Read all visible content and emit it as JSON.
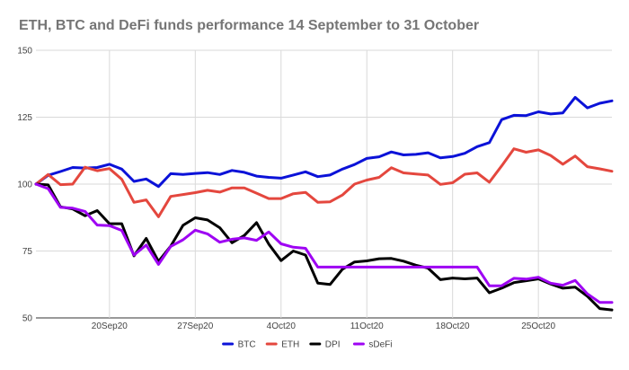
{
  "chart_data": {
    "type": "line",
    "title": "ETH, BTC and DeFi funds performance 14 September to 31 October",
    "xlabel": "",
    "ylabel": "",
    "ylim": [
      50,
      150
    ],
    "yticks": [
      50,
      75,
      100,
      125,
      150
    ],
    "xticks": [
      {
        "day": 6,
        "label": "20Sep20"
      },
      {
        "day": 13,
        "label": "27Sep20"
      },
      {
        "day": 20,
        "label": "4Oct20"
      },
      {
        "day": 27,
        "label": "11Oct20"
      },
      {
        "day": 34,
        "label": "18Oct20"
      },
      {
        "day": 41,
        "label": "25Oct20"
      }
    ],
    "grid": true,
    "legend_position": "bottom",
    "x": [
      0,
      1,
      2,
      3,
      4,
      5,
      6,
      7,
      8,
      9,
      10,
      11,
      12,
      13,
      14,
      15,
      16,
      17,
      18,
      19,
      20,
      21,
      22,
      23,
      24,
      25,
      26,
      27,
      28,
      29,
      30,
      31,
      32,
      33,
      34,
      35,
      36,
      37,
      38,
      39,
      40,
      41,
      42,
      43,
      44,
      45,
      46,
      47
    ],
    "series": [
      {
        "name": "BTC",
        "color": "#0b12d8",
        "values": [
          100,
          103.3,
          104.7,
          106.2,
          106.0,
          106.2,
          107.4,
          105.6,
          101.0,
          101.9,
          99.1,
          103.9,
          103.6,
          104.0,
          104.3,
          103.6,
          105.1,
          104.4,
          103.0,
          102.5,
          102.2,
          103.4,
          104.6,
          102.8,
          103.4,
          105.6,
          107.3,
          109.6,
          110.2,
          112.0,
          110.9,
          111.1,
          111.7,
          109.8,
          110.3,
          111.5,
          114.0,
          115.5,
          124.1,
          125.7,
          125.6,
          127.0,
          126.2,
          126.6,
          132.4,
          128.5,
          130.2,
          131.1
        ]
      },
      {
        "name": "ETH",
        "color": "#e4473e",
        "values": [
          100,
          103.6,
          99.8,
          100.0,
          106.3,
          105.0,
          105.8,
          101.8,
          93.2,
          94.1,
          87.8,
          95.4,
          96.1,
          96.8,
          97.7,
          97.0,
          98.6,
          98.6,
          96.6,
          94.6,
          94.6,
          96.4,
          96.9,
          93.2,
          93.4,
          95.9,
          100.0,
          101.5,
          102.5,
          106.1,
          104.2,
          103.8,
          103.4,
          99.9,
          100.5,
          103.7,
          104.2,
          100.7,
          106.8,
          113.2,
          111.9,
          112.8,
          110.7,
          107.4,
          110.5,
          106.5,
          105.7,
          104.8
        ]
      },
      {
        "name": "DPI",
        "color": "#000000",
        "values": [
          100,
          99.7,
          91.5,
          90.7,
          88.2,
          90.1,
          85.2,
          85.2,
          73.2,
          79.7,
          71.1,
          76.8,
          84.6,
          87.4,
          86.6,
          83.7,
          78.1,
          80.8,
          85.6,
          77.6,
          71.4,
          75.0,
          73.5,
          63.0,
          62.5,
          68.2,
          70.9,
          71.3,
          72.1,
          72.2,
          71.2,
          69.7,
          68.6,
          64.3,
          64.9,
          64.6,
          64.9,
          59.4,
          61.1,
          63.2,
          63.9,
          64.6,
          62.7,
          61.1,
          61.5,
          58.1,
          53.5,
          53.0
        ]
      },
      {
        "name": "sDeFi",
        "color": "#9e03f3",
        "values": [
          100,
          98.3,
          91.3,
          91.0,
          89.8,
          84.7,
          84.5,
          82.7,
          73.5,
          77.2,
          70.0,
          76.7,
          79.2,
          82.8,
          81.4,
          78.3,
          79.4,
          79.9,
          79.0,
          82.1,
          77.7,
          76.4,
          76.0,
          69.0,
          69.0,
          69.0,
          69.0,
          69.0,
          69.0,
          69.0,
          69.0,
          69.0,
          69.0,
          69.0,
          69.0,
          69.0,
          69.0,
          62.0,
          62.0,
          64.8,
          64.5,
          65.2,
          63.0,
          62.2,
          64.0,
          59.0,
          55.8,
          55.8
        ]
      }
    ]
  }
}
